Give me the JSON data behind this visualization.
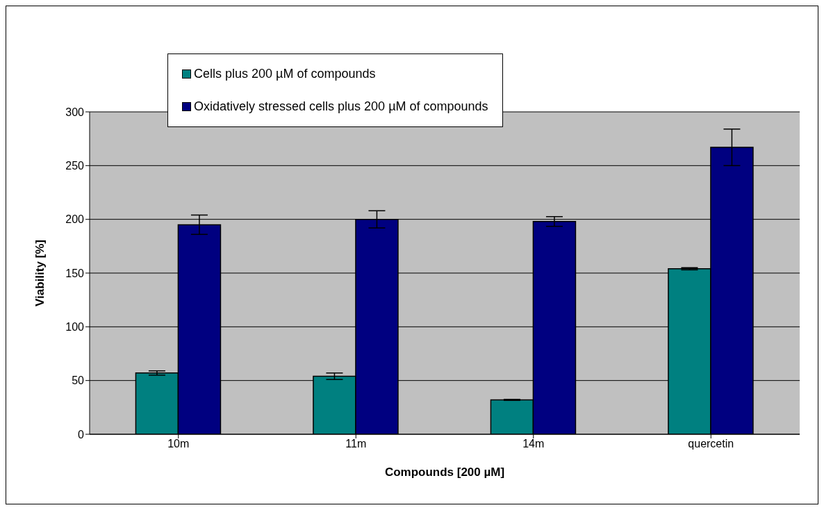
{
  "chart_data": {
    "type": "bar",
    "xlabel": "Compounds [200 µM]",
    "ylabel": "Viability [%]",
    "categories": [
      "10m",
      "11m",
      "14m",
      "quercetin"
    ],
    "series": [
      {
        "name": "Cells plus 200 µM of compounds",
        "color": "#008080",
        "values": [
          57,
          54,
          32,
          154
        ],
        "errors": [
          2,
          3,
          0.5,
          1
        ]
      },
      {
        "name": "Oxidatively stressed cells plus 200 µM of compounds",
        "color": "#000080",
        "values": [
          195,
          200,
          198,
          267
        ],
        "errors": [
          9,
          8,
          4.5,
          17
        ]
      }
    ],
    "ylim": [
      0,
      300
    ],
    "yticks": [
      0,
      50,
      100,
      150,
      200,
      250,
      300
    ],
    "grid": "y",
    "legend": "top"
  }
}
